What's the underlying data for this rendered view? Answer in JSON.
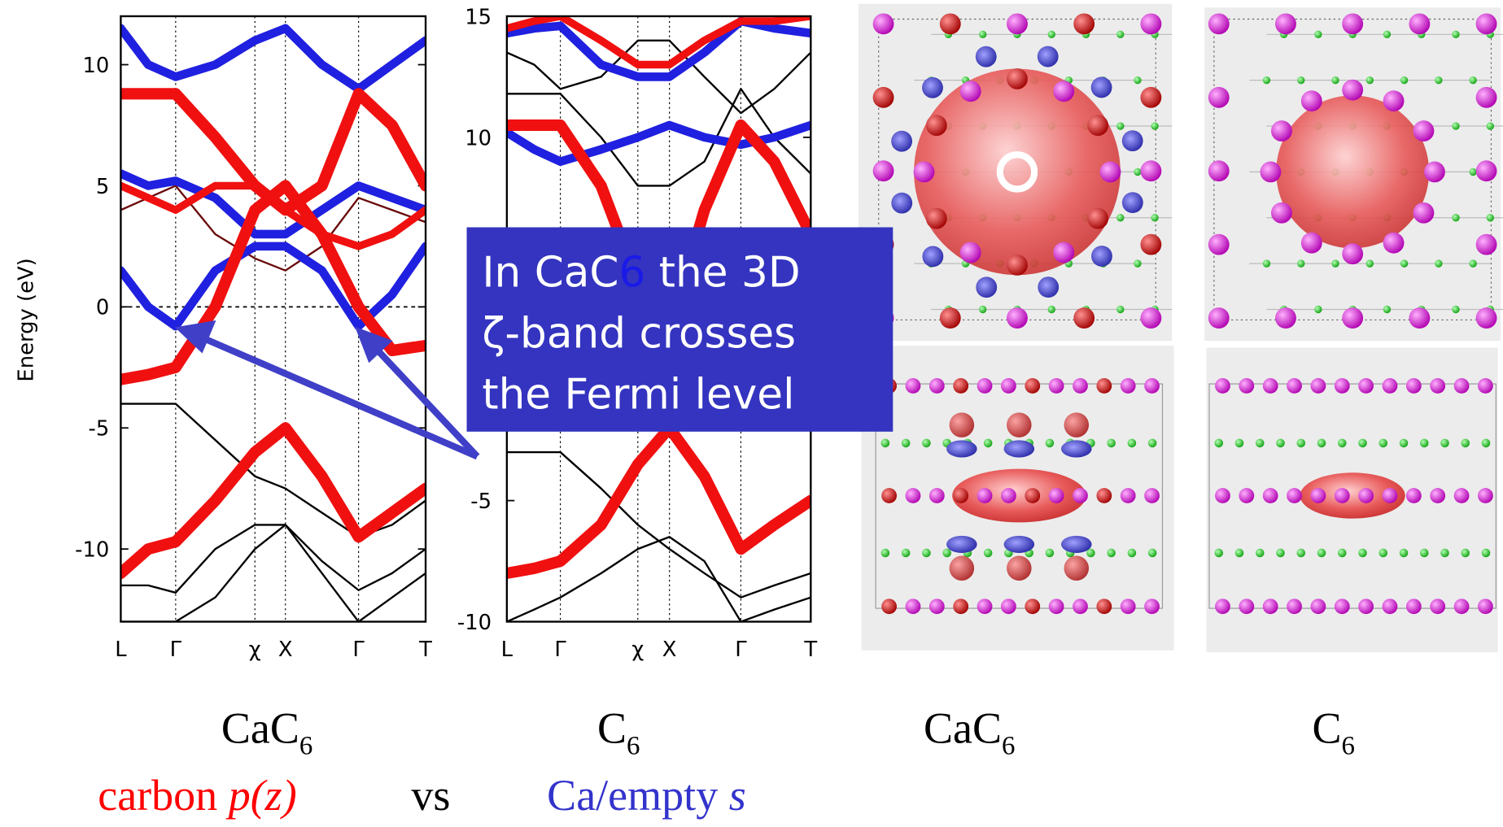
{
  "chart_data": [
    {
      "type": "line",
      "y_label": "Energy (eV)",
      "xlim": [
        0,
        1
      ],
      "ylim": [
        -13,
        12
      ],
      "yticks": [
        -10,
        -5,
        0,
        5,
        10
      ],
      "xticks": [
        {
          "value": 0,
          "label": "L"
        },
        {
          "value": 0.18,
          "label": "Γ"
        },
        {
          "value": 0.44,
          "label": "χ"
        },
        {
          "value": 0.54,
          "label": "X"
        },
        {
          "value": 0.78,
          "label": "Γ"
        },
        {
          "value": 1,
          "label": "T"
        }
      ],
      "fermi_line": 0,
      "x": [
        0,
        0.09,
        0.18,
        0.31,
        0.44,
        0.54,
        0.66,
        0.78,
        0.89,
        1
      ],
      "series": [
        {
          "color": "#000000",
          "width": 2,
          "values": [
            -4,
            -4,
            -4,
            -5.5,
            -7,
            -7.5,
            -8.5,
            -9.5,
            -9,
            -8
          ]
        },
        {
          "color": "#000000",
          "width": 2,
          "values": [
            -11.5,
            -11.5,
            -11.8,
            -10,
            -9,
            -9,
            -10.5,
            -11.7,
            -11,
            -10
          ]
        },
        {
          "color": "#000000",
          "width": 2,
          "values": [
            -13,
            -13,
            -13,
            -12,
            -10,
            -9,
            -11,
            -13,
            -12,
            -11
          ]
        },
        {
          "color": "#6a0a0a",
          "width": 2,
          "values": [
            4,
            4.5,
            5,
            3,
            2,
            1.5,
            2.5,
            4.5,
            4,
            3.5
          ]
        },
        {
          "color": "#2020e0",
          "width": 9,
          "values": [
            1.5,
            0,
            -0.8,
            1.5,
            2.5,
            2.5,
            1.5,
            -0.8,
            0.5,
            2.5
          ]
        },
        {
          "color": "#2020e0",
          "width": 9,
          "values": [
            5.5,
            5,
            5.2,
            4.5,
            3,
            3,
            4,
            5,
            4.5,
            4
          ]
        },
        {
          "color": "#2020e0",
          "width": 9,
          "values": [
            11.5,
            10,
            9.5,
            10,
            11,
            11.5,
            10,
            9,
            10,
            11
          ]
        },
        {
          "color": "#f01010",
          "width": 12,
          "values": [
            -3,
            -2.8,
            -2.5,
            0,
            4,
            5,
            3,
            0,
            -1.8,
            -1.6
          ]
        },
        {
          "color": "#f01010",
          "width": 12,
          "values": [
            -11,
            -10,
            -9.7,
            -8,
            -6,
            -5,
            -7,
            -9.5,
            -8.5,
            -7.5
          ]
        },
        {
          "color": "#f01010",
          "width": 12,
          "values": [
            8.8,
            8.8,
            8.8,
            7,
            5,
            4,
            5,
            8.8,
            7.5,
            5
          ]
        },
        {
          "color": "#f01010",
          "width": 8,
          "values": [
            5,
            4.5,
            4,
            5,
            5,
            4,
            3,
            2.5,
            3,
            4
          ]
        }
      ]
    },
    {
      "type": "line",
      "xlim": [
        0,
        1
      ],
      "ylim": [
        -10,
        15
      ],
      "yticks": [
        -10,
        -5,
        10,
        15
      ],
      "xticks": [
        {
          "value": 0,
          "label": "L"
        },
        {
          "value": 0.176,
          "label": "Γ"
        },
        {
          "value": 0.431,
          "label": "χ"
        },
        {
          "value": 0.535,
          "label": "X"
        },
        {
          "value": 0.77,
          "label": "Γ"
        },
        {
          "value": 1,
          "label": "T"
        }
      ],
      "x": [
        0,
        0.09,
        0.176,
        0.31,
        0.431,
        0.535,
        0.65,
        0.77,
        0.88,
        1
      ],
      "series": [
        {
          "color": "#000000",
          "width": 2,
          "values": [
            -3,
            -3,
            -3,
            -4.5,
            -6,
            -7,
            -8,
            -9,
            -8.5,
            -8
          ]
        },
        {
          "color": "#000000",
          "width": 2,
          "values": [
            -10,
            -9.5,
            -9,
            -8,
            -7,
            -6.5,
            -7.5,
            -10,
            -9.5,
            -9
          ]
        },
        {
          "color": "#000000",
          "width": 2,
          "values": [
            11.8,
            11.8,
            11.8,
            10,
            8,
            8,
            9,
            12,
            10,
            8.5
          ]
        },
        {
          "color": "#000000",
          "width": 2,
          "values": [
            13.5,
            13,
            12,
            12.5,
            14,
            14,
            12.5,
            11,
            12,
            13.5
          ]
        },
        {
          "color": "#2020e0",
          "width": 9,
          "values": [
            10.2,
            9.5,
            9,
            9.5,
            10,
            10.5,
            10,
            9.7,
            10,
            10.5
          ]
        },
        {
          "color": "#2020e0",
          "width": 9,
          "values": [
            14.3,
            14.5,
            14.6,
            13,
            12.5,
            12.5,
            13.5,
            14.8,
            14.5,
            14.3
          ]
        },
        {
          "color": "#f01010",
          "width": 12,
          "values": [
            10.5,
            10.5,
            10.5,
            8,
            4,
            2,
            7,
            10.5,
            9,
            6
          ]
        },
        {
          "color": "#f01010",
          "width": 12,
          "values": [
            -8,
            -7.8,
            -7.5,
            -6,
            -3.5,
            -2,
            -4,
            -7,
            -6,
            -5
          ]
        },
        {
          "color": "#f01010",
          "width": 8,
          "values": [
            14.5,
            14.8,
            15,
            14,
            13,
            13,
            14,
            14.8,
            14.8,
            15
          ]
        }
      ]
    }
  ],
  "callout": {
    "lines": [
      [
        {
          "text": "In CaC"
        },
        {
          "text": "6",
          "color": "#1a1ae8"
        },
        {
          "text": " the 3D"
        }
      ],
      [
        {
          "text": "ζ-band crosses"
        }
      ],
      [
        {
          "text": "the Fermi level"
        }
      ]
    ]
  },
  "captions": [
    {
      "text": "CaC",
      "sub": "6"
    },
    {
      "text": "C",
      "sub": "6"
    },
    {
      "text": "CaC",
      "sub": "6"
    },
    {
      "text": "C",
      "sub": "6"
    }
  ],
  "footer": {
    "left": {
      "text": "carbon ",
      "italic": "p(z)",
      "color": "#ff0000"
    },
    "middle": "vs",
    "right": {
      "text": "Ca/empty ",
      "italic": "s",
      "color": "#3333cc"
    }
  }
}
